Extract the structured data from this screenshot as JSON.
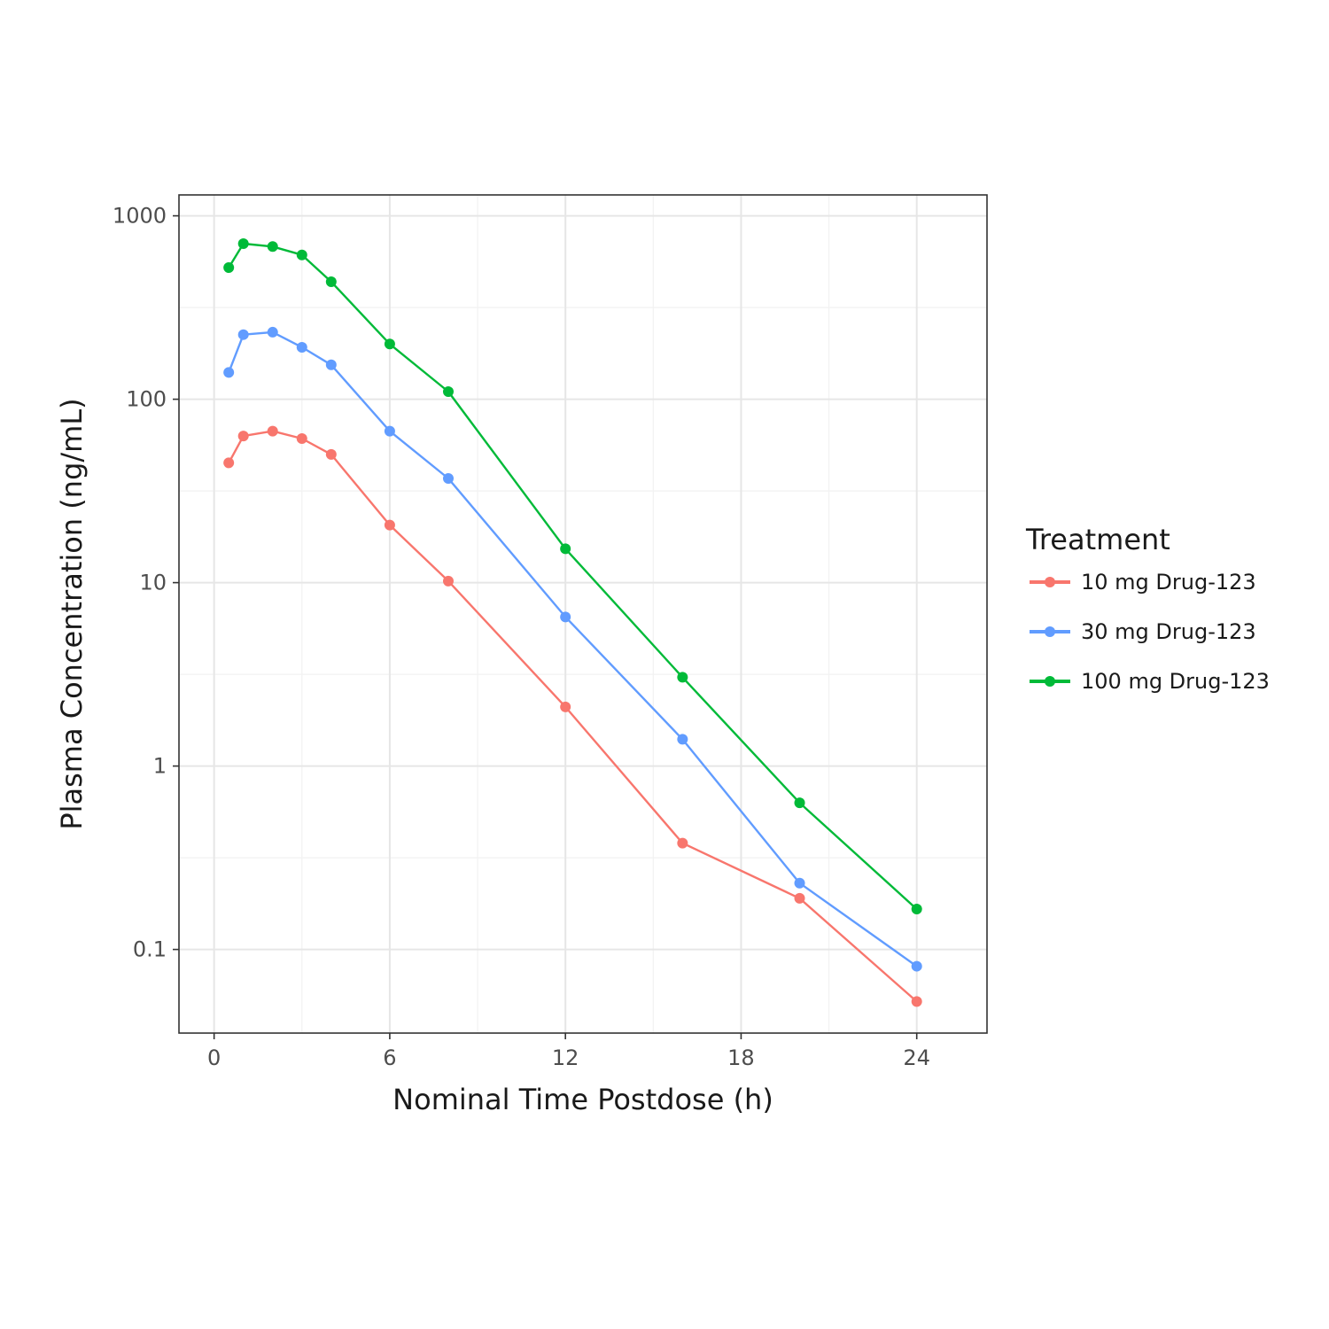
{
  "chart_data": {
    "type": "line",
    "xlabel": "Nominal Time Postdose (h)",
    "ylabel": "Plasma Concentration (ng/mL)",
    "y_scale": "log10",
    "xlim": [
      -1.2,
      26.4
    ],
    "ylim": [
      0.035,
      1300
    ],
    "x_ticks": [
      0,
      6,
      12,
      18,
      24
    ],
    "x_tick_labels": [
      "0",
      "6",
      "12",
      "18",
      "24"
    ],
    "y_ticks": [
      0.1,
      1,
      10,
      100,
      1000
    ],
    "y_tick_labels": [
      "0.1",
      "1",
      "10",
      "100",
      "1000"
    ],
    "grid": true,
    "legend": {
      "title": "Treatment",
      "position": "right"
    },
    "x": [
      0.5,
      1,
      2,
      3,
      4,
      6,
      8,
      12,
      16,
      20,
      24
    ],
    "series": [
      {
        "name": "10 mg Drug-123",
        "color": "#F8766D",
        "x": [
          0.5,
          1,
          2,
          3,
          4,
          6,
          8,
          12,
          16,
          20,
          24
        ],
        "values": [
          45,
          63,
          67,
          61,
          50,
          20.6,
          10.2,
          2.1,
          0.38,
          0.19,
          0.052
        ]
      },
      {
        "name": "30 mg Drug-123",
        "color": "#619CFF",
        "x": [
          0.5,
          1,
          2,
          3,
          4,
          6,
          8,
          12,
          16,
          20,
          24
        ],
        "values": [
          140,
          225,
          232,
          192,
          154,
          67,
          37,
          6.5,
          1.4,
          0.23,
          0.081
        ]
      },
      {
        "name": "100 mg Drug-123",
        "color": "#00BA38",
        "x": [
          0.5,
          1,
          2,
          3,
          4,
          6,
          8,
          12,
          16,
          20,
          24
        ],
        "values": [
          522,
          705,
          680,
          612,
          437,
          200,
          110,
          15.3,
          3.05,
          0.63,
          0.166
        ]
      }
    ]
  }
}
